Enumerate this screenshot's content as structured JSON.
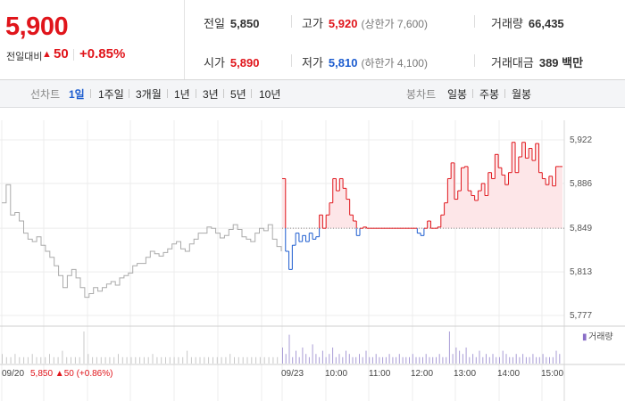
{
  "quote": {
    "price": "5,900",
    "change_label": "전일대비",
    "change_arrow": "▲",
    "change": "50",
    "change_rate": "+0.85%",
    "colors": {
      "up": "#e0151b",
      "down": "#1c5ccf"
    }
  },
  "stats": {
    "prev_close_label": "전일",
    "prev_close": "5,850",
    "high_label": "고가",
    "high": "5,920",
    "upper_limit": "(상한가 7,600)",
    "volume_label": "거래량",
    "volume": "66,435",
    "open_label": "시가",
    "open": "5,890",
    "low_label": "저가",
    "low": "5,810",
    "lower_limit": "(하한가 4,100)",
    "amount_label": "거래대금",
    "amount": "389 백만"
  },
  "toolbar": {
    "line_label": "선차트",
    "line_periods": [
      "1일",
      "1주일",
      "3개월",
      "1년",
      "3년",
      "5년",
      "10년"
    ],
    "active_period": "1일",
    "candle_label": "봉차트",
    "candle_periods": [
      "일봉",
      "주봉",
      "월봉"
    ]
  },
  "footer": {
    "prev_date": "09/20",
    "prev_info": "5,850 ▲50 (+0.86%)",
    "cur_date": "09/23",
    "times": [
      "10:00",
      "11:00",
      "12:00",
      "13:00",
      "14:00",
      "15:00"
    ],
    "volume_legend": "거래량"
  },
  "chart_data": {
    "type": "line",
    "y_ticks": [
      "5,922",
      "5,886",
      "5,849",
      "5,813",
      "5,777"
    ],
    "ylim": [
      5777,
      5922
    ],
    "baseline": 5849,
    "grid": true,
    "prev_day_series": [
      5870,
      5885,
      5860,
      5862,
      5855,
      5845,
      5840,
      5838,
      5842,
      5835,
      5830,
      5825,
      5818,
      5810,
      5800,
      5810,
      5815,
      5808,
      5800,
      5792,
      5795,
      5800,
      5797,
      5800,
      5803,
      5805,
      5802,
      5808,
      5810,
      5812,
      5818,
      5820,
      5820,
      5825,
      5830,
      5828,
      5826,
      5829,
      5832,
      5836,
      5838,
      5832,
      5830,
      5836,
      5840,
      5845,
      5845,
      5850,
      5849,
      5845,
      5841,
      5843,
      5848,
      5852,
      5848,
      5842,
      5840,
      5838,
      5845,
      5849,
      5847,
      5852,
      5840,
      5834,
      5830
    ],
    "today_series": [
      5890,
      5830,
      5815,
      5835,
      5845,
      5838,
      5843,
      5838,
      5845,
      5840,
      5842,
      5860,
      5849,
      5860,
      5870,
      5890,
      5880,
      5890,
      5882,
      5873,
      5860,
      5855,
      5843,
      5849,
      5850,
      5849,
      5849,
      5849,
      5849,
      5849,
      5849,
      5849,
      5849,
      5849,
      5849,
      5849,
      5849,
      5849,
      5849,
      5849,
      5845,
      5843,
      5849,
      5855,
      5849,
      5849,
      5850,
      5860,
      5870,
      5890,
      5903,
      5873,
      5880,
      5899,
      5900,
      5880,
      5876,
      5872,
      5880,
      5886,
      5876,
      5895,
      5890,
      5910,
      5899,
      5893,
      5885,
      5895,
      5920,
      5895,
      5908,
      5920,
      5907,
      5915,
      5905,
      5919,
      5895,
      5890,
      5885,
      5892,
      5884,
      5900,
      5900,
      5900
    ],
    "today_volume": [
      0.5,
      0.3,
      0.9,
      0.2,
      0.4,
      0.2,
      0.5,
      0.3,
      0.2,
      0.6,
      0.3,
      0.2,
      0.4,
      0.2,
      0.3,
      0.5,
      0.2,
      0.3,
      0.2,
      0.4,
      0.3,
      0.2,
      0.2,
      0.3,
      0.2,
      0.4,
      0.2,
      0.2,
      0.3,
      0.2,
      0.2,
      0.2,
      0.3,
      0.2,
      0.2,
      0.3,
      0.2,
      0.2,
      0.2,
      0.3,
      0.2,
      0.2,
      0.2,
      0.3,
      0.2,
      0.2,
      0.2,
      0.3,
      0.2,
      0.2,
      1.0,
      0.3,
      0.5,
      0.4,
      0.3,
      0.5,
      0.2,
      0.3,
      0.2,
      0.4,
      0.2,
      0.3,
      0.2,
      0.3,
      0.2,
      0.2,
      0.4,
      0.3,
      0.2,
      0.2,
      0.3,
      0.2,
      0.3,
      0.2,
      0.2,
      0.3,
      0.2,
      0.2,
      0.3,
      0.2,
      0.2,
      0.2,
      0.4,
      0.3
    ],
    "prev_volume": [
      0.3,
      0.2,
      0.2,
      0.3,
      0.2,
      0.2,
      0.2,
      0.3,
      0.2,
      0.2,
      0.2,
      0.3,
      0.2,
      0.2,
      0.4,
      0.2,
      0.2,
      0.2,
      0.2,
      1.0,
      0.3,
      0.2,
      0.2,
      0.2,
      0.2,
      0.2,
      0.2,
      0.3,
      0.2,
      0.2,
      0.2,
      0.2,
      0.2,
      0.2,
      0.2,
      0.3,
      0.2,
      0.2,
      0.2,
      0.2,
      0.2,
      0.2,
      0.2,
      0.4,
      0.2,
      0.2,
      0.2,
      0.2,
      0.2,
      0.2,
      0.2,
      0.2,
      0.2,
      0.3,
      0.2,
      0.2,
      0.2,
      0.2,
      0.2,
      0.2,
      0.2,
      0.2,
      0.2,
      0.2,
      0.2
    ]
  }
}
